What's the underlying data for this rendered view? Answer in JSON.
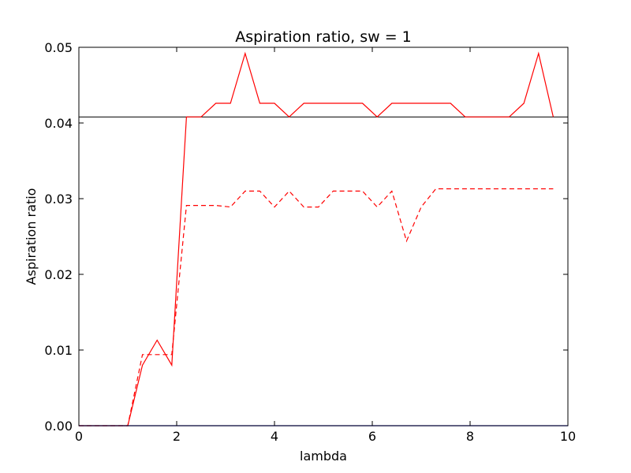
{
  "chart_data": {
    "type": "line",
    "title": "Aspiration ratio, sw = 1",
    "xlabel": "lambda",
    "ylabel": "Aspiration ratio",
    "xlim": [
      0,
      10
    ],
    "ylim": [
      0,
      0.05
    ],
    "xticks": [
      "0",
      "2",
      "4",
      "6",
      "8",
      "10"
    ],
    "yticks": [
      "0.00",
      "0.01",
      "0.02",
      "0.03",
      "0.04",
      "0.05"
    ],
    "grid": false,
    "reference_lines": [
      {
        "axis": "y",
        "value": 0.0408,
        "color": "#000000"
      }
    ],
    "series": [
      {
        "style": "solid",
        "color": "#ff0000",
        "x": [
          0,
          0.3,
          0.6,
          1.0,
          1.3,
          1.6,
          1.9,
          2.2,
          2.5,
          2.8,
          3.1,
          3.4,
          3.7,
          4.0,
          4.3,
          4.6,
          4.9,
          5.2,
          5.5,
          5.8,
          6.1,
          6.4,
          6.7,
          7.0,
          7.3,
          7.6,
          7.9,
          8.2,
          8.5,
          8.8,
          9.1,
          9.4,
          9.7
        ],
        "y": [
          0,
          0,
          0,
          0,
          0.008,
          0.0113,
          0.008,
          0.0408,
          0.0408,
          0.0426,
          0.0426,
          0.0492,
          0.0426,
          0.0426,
          0.0408,
          0.0426,
          0.0426,
          0.0426,
          0.0426,
          0.0426,
          0.0408,
          0.0426,
          0.0426,
          0.0426,
          0.0426,
          0.0426,
          0.0408,
          0.0408,
          0.0408,
          0.0408,
          0.0426,
          0.0492,
          0.0408
        ]
      },
      {
        "style": "dashed",
        "color": "#ff0000",
        "x": [
          0,
          0.3,
          0.6,
          1.0,
          1.3,
          1.6,
          1.9,
          2.2,
          2.5,
          2.8,
          3.1,
          3.4,
          3.7,
          4.0,
          4.3,
          4.6,
          4.9,
          5.2,
          5.5,
          5.8,
          6.1,
          6.4,
          6.7,
          7.0,
          7.3,
          7.6,
          7.9,
          8.2,
          8.5,
          8.8,
          9.1,
          9.4,
          9.7
        ],
        "y": [
          0,
          0,
          0,
          0,
          0.0094,
          0.0094,
          0.0094,
          0.0291,
          0.0291,
          0.0291,
          0.0289,
          0.031,
          0.031,
          0.0289,
          0.031,
          0.0289,
          0.0289,
          0.031,
          0.031,
          0.031,
          0.0289,
          0.031,
          0.0244,
          0.0289,
          0.0313,
          0.0313,
          0.0313,
          0.0313,
          0.0313,
          0.0313,
          0.0313,
          0.0313,
          0.0313
        ]
      },
      {
        "style": "solid",
        "color": "#0000ff",
        "x": [
          0,
          10
        ],
        "y": [
          0,
          0
        ]
      }
    ]
  }
}
